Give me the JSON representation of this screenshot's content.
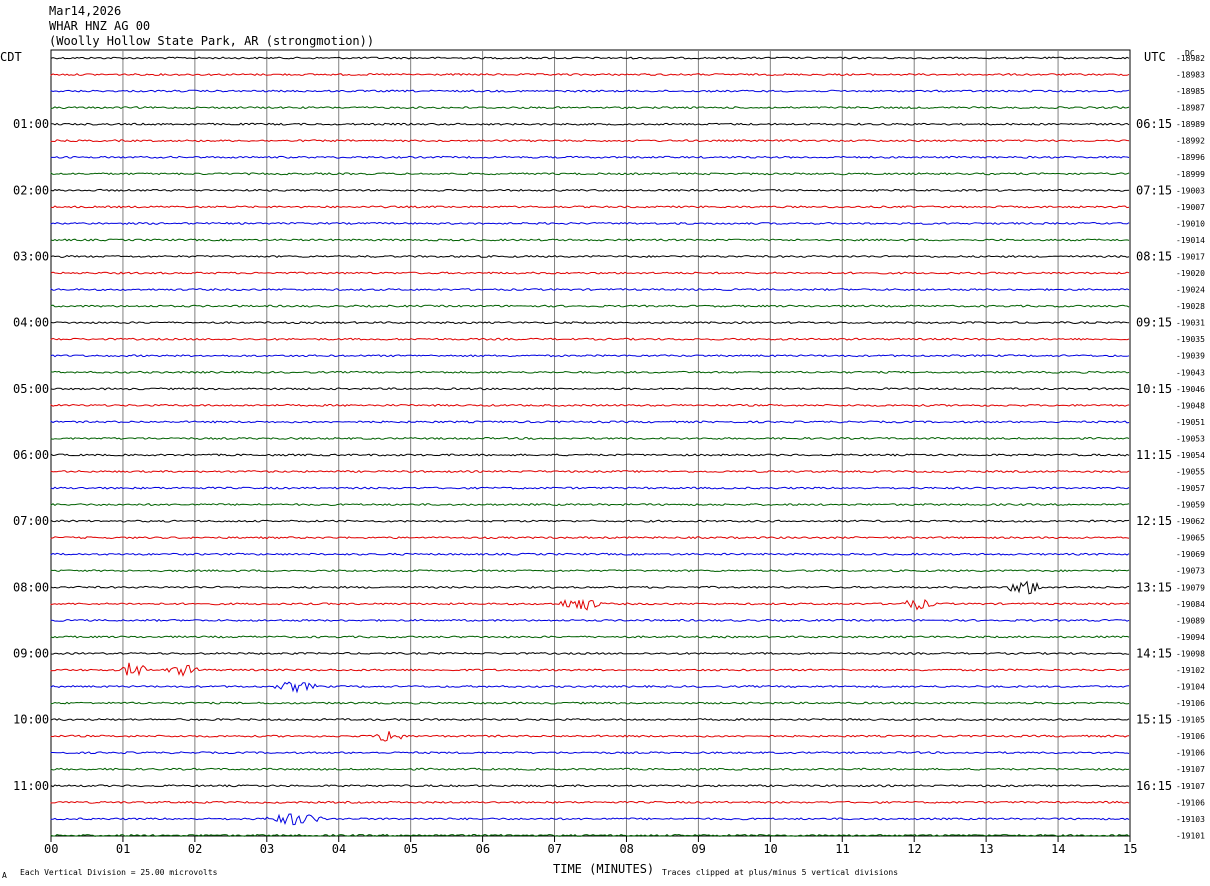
{
  "header": {
    "date": "Mar14,2026",
    "station": "WHAR HNZ AG 00",
    "location": "(Woolly Hollow State Park, AR (strongmotion))"
  },
  "left_zone_label": "CDT",
  "right_zone_label": "UTC",
  "dc_label": "DC",
  "footer": {
    "scale_note": "Each Vertical Division =   25.00 microvolts",
    "xlabel": "TIME (MINUTES)",
    "clip_note": "Traces clipped at plus/minus 5 vertical divisions",
    "corner_mark": "A"
  },
  "colors": {
    "trace_cycle": [
      "#000000",
      "#e00000",
      "#0000e0",
      "#006000"
    ],
    "grid": "#808080"
  },
  "chart_data": {
    "type": "line",
    "description_free": true,
    "x_ticks": [
      "00",
      "01",
      "02",
      "03",
      "04",
      "05",
      "06",
      "07",
      "08",
      "09",
      "10",
      "11",
      "12",
      "13",
      "14",
      "15"
    ],
    "xlim": [
      0,
      15
    ],
    "xlabel": "TIME (MINUTES)",
    "left_time_labels": [
      "01:00",
      "02:00",
      "03:00",
      "04:00",
      "05:00",
      "06:00",
      "07:00",
      "08:00",
      "09:00",
      "10:00",
      "11:00"
    ],
    "right_time_labels": [
      "06:15",
      "07:15",
      "08:15",
      "09:15",
      "10:15",
      "11:15",
      "12:15",
      "13:15",
      "14:15",
      "15:15",
      "16:15"
    ],
    "dc_offsets": [
      "-18982",
      "-18983",
      "-18985",
      "-18987",
      "-18989",
      "-18992",
      "-18996",
      "-18999",
      "-19003",
      "-19007",
      "-19010",
      "-19014",
      "-19017",
      "-19020",
      "-19024",
      "-19028",
      "-19031",
      "-19035",
      "-19039",
      "-19043",
      "-19046",
      "-19048",
      "-19051",
      "-19053",
      "-19054",
      "-19055",
      "-19057",
      "-19059",
      "-19062",
      "-19065",
      "-19069",
      "-19073",
      "-19079",
      "-19084",
      "-19089",
      "-19094",
      "-19098",
      "-19102",
      "-19104",
      "-19106",
      "-19105",
      "-19106",
      "-19106",
      "-19107",
      "-19107",
      "-19106",
      "-19103",
      "-19101"
    ],
    "events": [
      {
        "row": 32,
        "minute": 13.55,
        "duration": 0.5,
        "amplitude": 9
      },
      {
        "row": 33,
        "minute": 7.35,
        "duration": 0.6,
        "amplitude": 8
      },
      {
        "row": 33,
        "minute": 12.05,
        "duration": 0.5,
        "amplitude": 6
      },
      {
        "row": 37,
        "minute": 1.15,
        "duration": 0.35,
        "amplitude": 10
      },
      {
        "row": 37,
        "minute": 1.85,
        "duration": 0.5,
        "amplitude": 6
      },
      {
        "row": 38,
        "minute": 3.4,
        "duration": 0.6,
        "amplitude": 6
      },
      {
        "row": 41,
        "minute": 4.7,
        "duration": 0.4,
        "amplitude": 9
      },
      {
        "row": 46,
        "minute": 3.4,
        "duration": 0.8,
        "amplitude": 7
      }
    ]
  }
}
